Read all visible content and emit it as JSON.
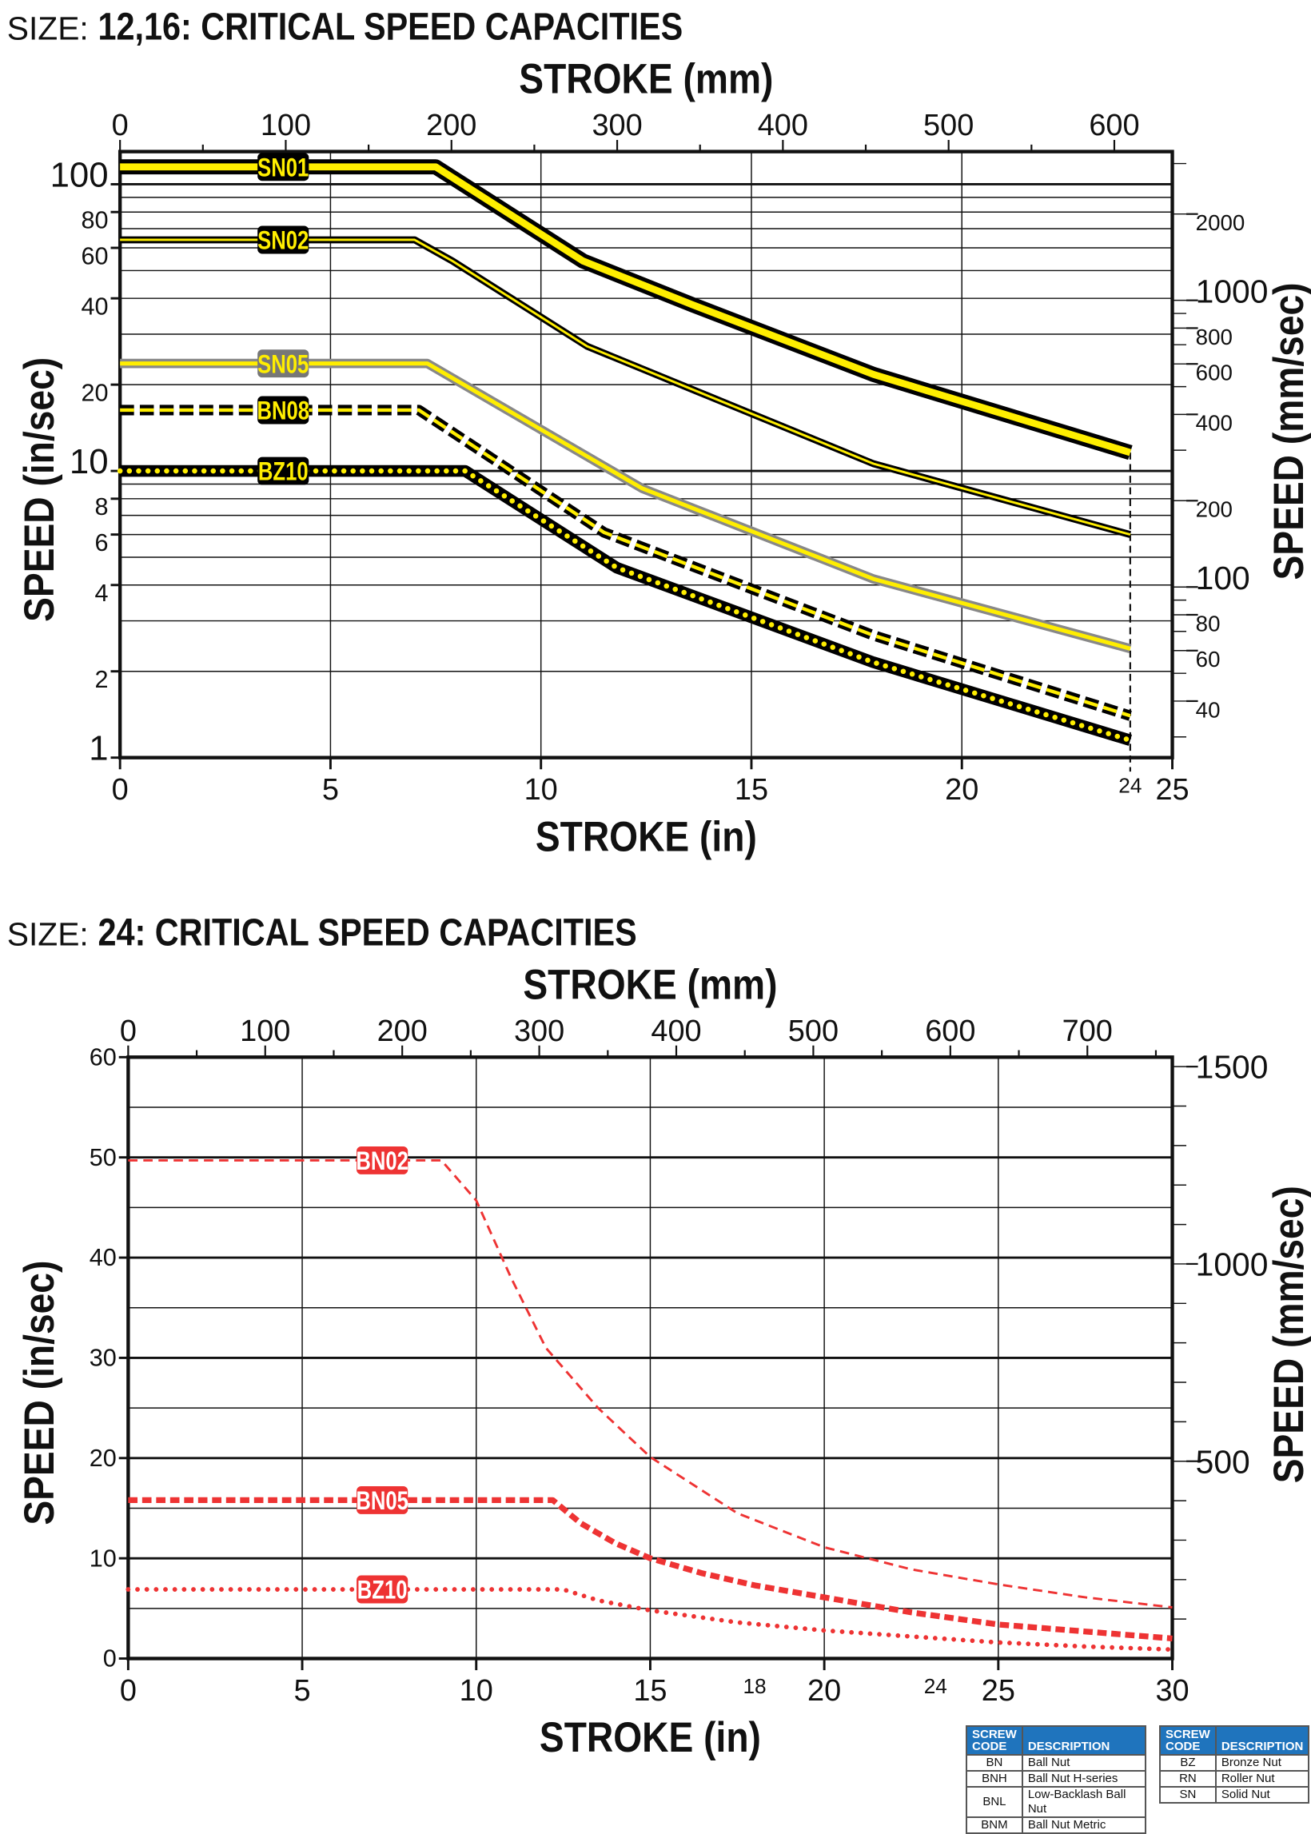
{
  "charts_header": [
    {
      "size_label": "SIZE:",
      "title": "12,16: CRITICAL SPEED CAPACITIES"
    },
    {
      "size_label": "SIZE:",
      "title": "24: CRITICAL SPEED CAPACITIES"
    }
  ],
  "chart_data": [
    {
      "type": "line",
      "title": "12,16: CRITICAL SPEED CAPACITIES",
      "xlabel": "STROKE (in)",
      "x2label": "STROKE (mm)",
      "ylabel": "SPEED (in/sec)",
      "y2label": "SPEED (mm/sec)",
      "yscale": "log",
      "xlim": [
        0,
        25
      ],
      "ylim": [
        1,
        130
      ],
      "x_ticks": [
        0,
        5,
        10,
        15,
        20,
        25
      ],
      "x_extra_tick": 24,
      "x2_ticks": [
        0,
        100,
        200,
        300,
        400,
        500,
        600
      ],
      "y_ticks": [
        1,
        2,
        4,
        6,
        8,
        10,
        20,
        40,
        60,
        80,
        100
      ],
      "y2_ticks": [
        40,
        60,
        80,
        100,
        200,
        400,
        600,
        800,
        1000,
        2000
      ],
      "grid": true,
      "series": [
        {
          "name": "SN01",
          "style": "solid-thick",
          "points": [
            [
              0,
              115
            ],
            [
              7.5,
              115
            ],
            [
              11,
              54
            ],
            [
              13.6,
              38
            ],
            [
              17.9,
              21.7
            ],
            [
              24,
              11.6
            ]
          ]
        },
        {
          "name": "SN02",
          "style": "solid-thin",
          "points": [
            [
              0,
              64
            ],
            [
              7,
              64
            ],
            [
              7.9,
              54
            ],
            [
              11.1,
              27.2
            ],
            [
              13.8,
              18.7
            ],
            [
              17.9,
              10.6
            ],
            [
              24,
              6.0
            ]
          ]
        },
        {
          "name": "SN05",
          "style": "solid-gray",
          "points": [
            [
              0,
              23.7
            ],
            [
              7.3,
              23.7
            ],
            [
              12.4,
              8.7
            ],
            [
              17.9,
              4.2
            ],
            [
              24,
              2.4
            ]
          ]
        },
        {
          "name": "BN08",
          "style": "dashed",
          "points": [
            [
              0,
              16.3
            ],
            [
              7.1,
              16.3
            ],
            [
              11.5,
              6.1
            ],
            [
              17.9,
              2.67
            ],
            [
              24,
              1.4
            ]
          ]
        },
        {
          "name": "BZ10",
          "style": "dotted",
          "points": [
            [
              0,
              10
            ],
            [
              8.2,
              10
            ],
            [
              11.8,
              4.6
            ],
            [
              17.9,
              2.15
            ],
            [
              24,
              1.15
            ]
          ]
        }
      ],
      "colors": {
        "primary": "#000000",
        "accent": "#ffee00",
        "gray": "#888888"
      }
    },
    {
      "type": "line",
      "title": "24: CRITICAL SPEED CAPACITIES",
      "xlabel": "STROKE (in)",
      "x2label": "STROKE (mm)",
      "ylabel": "SPEED (in/sec)",
      "y2label": "SPEED (mm/sec)",
      "yscale": "linear",
      "xlim": [
        0,
        30
      ],
      "ylim": [
        0,
        60
      ],
      "x_ticks": [
        0,
        5,
        10,
        15,
        20,
        25,
        30
      ],
      "x_extra_ticks": [
        18,
        24
      ],
      "x2_ticks": [
        0,
        100,
        200,
        300,
        400,
        500,
        600,
        700
      ],
      "y_ticks": [
        0,
        10,
        20,
        30,
        40,
        50,
        60
      ],
      "y2_ticks": [
        500,
        1000,
        1500
      ],
      "grid": true,
      "series": [
        {
          "name": "BN02",
          "style": "dashed-thin",
          "points": [
            [
              0,
              49.7
            ],
            [
              9,
              49.7
            ],
            [
              10,
              45.7
            ],
            [
              11,
              38
            ],
            [
              12,
              31
            ],
            [
              13.5,
              25
            ],
            [
              15,
              20.1
            ],
            [
              17.5,
              14.5
            ],
            [
              20,
              11.1
            ],
            [
              22.5,
              8.9
            ],
            [
              25,
              7.4
            ],
            [
              27.5,
              6.1
            ],
            [
              30,
              5.1
            ]
          ]
        },
        {
          "name": "BN05",
          "style": "dashed-thick",
          "points": [
            [
              0,
              15.8
            ],
            [
              12.2,
              15.8
            ],
            [
              13,
              13.5
            ],
            [
              14,
              11.5
            ],
            [
              15,
              10
            ],
            [
              16.5,
              8.5
            ],
            [
              18,
              7.3
            ],
            [
              20,
              6.1
            ],
            [
              22.5,
              4.6
            ],
            [
              25,
              3.4
            ],
            [
              27.5,
              2.7
            ],
            [
              30,
              2.0
            ]
          ]
        },
        {
          "name": "BZ10",
          "style": "dotted",
          "points": [
            [
              0,
              6.9
            ],
            [
              12.5,
              6.9
            ],
            [
              13.5,
              5.8
            ],
            [
              15,
              4.8
            ],
            [
              17.5,
              3.6
            ],
            [
              20,
              2.8
            ],
            [
              22.5,
              2.2
            ],
            [
              25,
              1.6
            ],
            [
              27.5,
              1.2
            ],
            [
              30,
              0.9
            ]
          ]
        }
      ],
      "colors": {
        "primary": "#ee3333"
      }
    }
  ],
  "legend_tables": [
    {
      "headers": [
        "SCREW CODE",
        "DESCRIPTION"
      ],
      "rows": [
        [
          "BN",
          "Ball Nut"
        ],
        [
          "BNH",
          "Ball Nut H-series"
        ],
        [
          "BNL",
          "Low-Backlash Ball Nut"
        ],
        [
          "BNM",
          "Ball Nut Metric"
        ]
      ]
    },
    {
      "headers": [
        "SCREW CODE",
        "DESCRIPTION"
      ],
      "rows": [
        [
          "BZ",
          "Bronze Nut"
        ],
        [
          "RN",
          "Roller Nut"
        ],
        [
          "SN",
          "Solid Nut"
        ]
      ]
    }
  ],
  "legend_header_color": "#1f74bd"
}
